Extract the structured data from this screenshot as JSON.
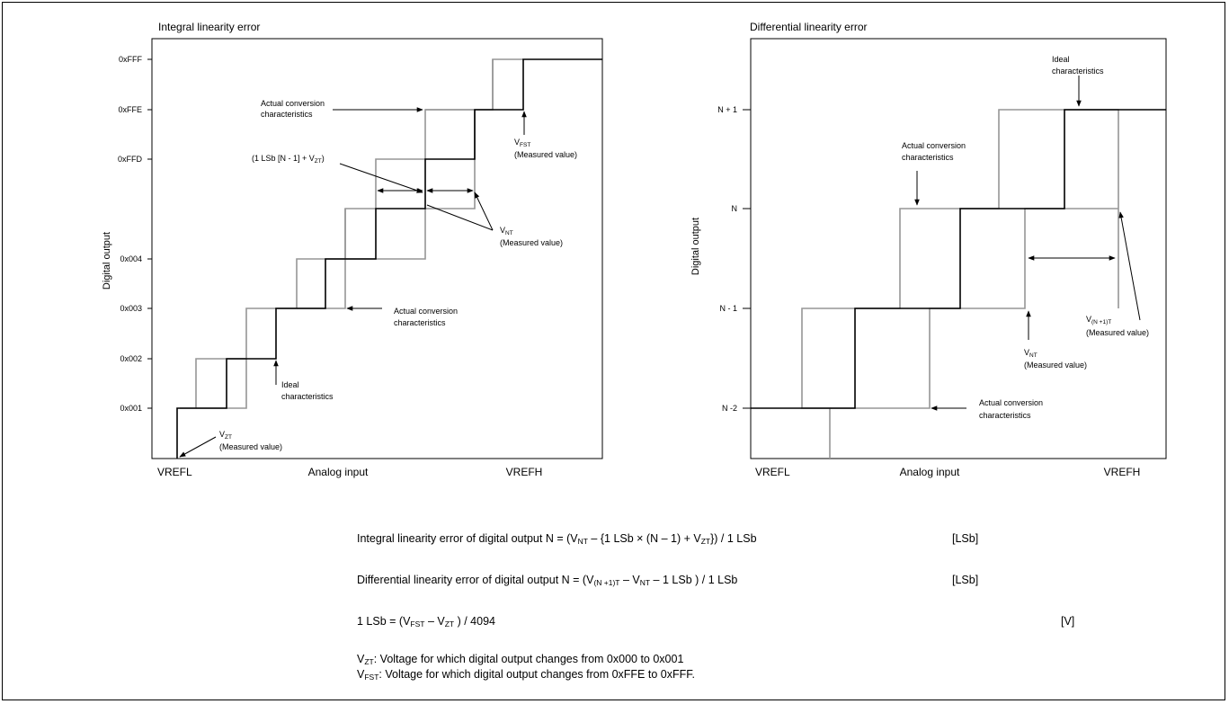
{
  "left_chart": {
    "title": "Integral linearity error",
    "ylabel": "Digital output",
    "xlabel": "Analog input",
    "x_left": "VREFL",
    "x_right": "VREFH",
    "yticks": [
      "0xFFF",
      "0xFFE",
      "0xFFD",
      "0x004",
      "0x003",
      "0x002",
      "0x001"
    ],
    "ann_actual_top_1": "Actual conversion",
    "ann_actual_top_2": "characteristics",
    "ann_1lsb_text": "(1 LSb [N - 1] + V",
    "ann_1lsb_sub": "ZT",
    "ann_1lsb_close": ")",
    "ann_vnt_v": "V",
    "ann_vnt_sub": "NT",
    "ann_vnt_meas": "(Measured value)",
    "ann_vfst_v": "V",
    "ann_vfst_sub": "FST",
    "ann_vfst_meas": "(Measured value)",
    "ann_actual_mid_1": "Actual conversion",
    "ann_actual_mid_2": "characteristics",
    "ann_ideal_1": "Ideal",
    "ann_ideal_2": "characteristics",
    "ann_vzt_v": "V",
    "ann_vzt_sub": "ZT",
    "ann_vzt_meas": "(Measured value)"
  },
  "right_chart": {
    "title": "Differential linearity error",
    "ylabel": "Digital output",
    "xlabel": "Analog input",
    "x_left": "VREFL",
    "x_right": "VREFH",
    "yticks": [
      "N + 1",
      "N",
      "N - 1",
      "N -2"
    ],
    "ann_ideal_1": "Ideal",
    "ann_ideal_2": "characteristics",
    "ann_actual_top_1": "Actual conversion",
    "ann_actual_top_2": "characteristics",
    "ann_vn1t_v": "V",
    "ann_vn1t_sub": "(N +1)T",
    "ann_vn1t_meas": "(Measured value)",
    "ann_vnt_v": "V",
    "ann_vnt_sub": "NT",
    "ann_vnt_meas": "(Measured value)",
    "ann_actual_bot_1": "Actual conversion",
    "ann_actual_bot_2": "characteristics"
  },
  "formulas": {
    "integral": {
      "p1": "Integral linearity error of digital output N = (V",
      "s1": "NT",
      "p2": " – {1 LSb × (N – 1) + V",
      "s2": "ZT",
      "p3": "}) / 1 LSb",
      "unit": "[LSb]"
    },
    "differential": {
      "p1": "Differential linearity error of digital output N = (V",
      "s1": "(N +1)T",
      "p2": " – V",
      "s2": "NT",
      "p3": " – 1 LSb ) / 1 LSb",
      "unit": "[LSb]"
    },
    "lsb": {
      "p1": "1 LSb = (V",
      "s1": "FST",
      "p2": " – V",
      "s2": "ZT",
      "p3": " ) / 4094",
      "unit": "[V]"
    },
    "vzt_def": {
      "p1": "V",
      "s1": "ZT",
      "p2": ": Voltage for which digital output changes from 0x000 to 0x001"
    },
    "vfst_def": {
      "p1": "V",
      "s1": "FST",
      "p2": ": Voltage for which digital output changes from 0xFFE to 0xFFF."
    }
  },
  "colors": {
    "ideal_line": "#969696",
    "actual_line": "#000000"
  }
}
